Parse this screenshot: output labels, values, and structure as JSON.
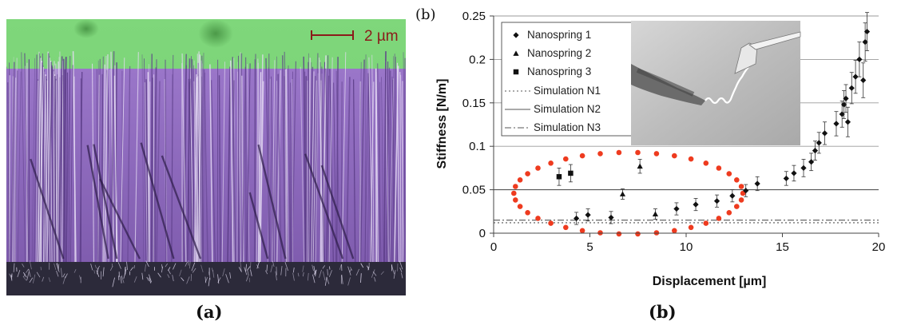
{
  "panel_a": {
    "scale_bar_label": "2 µm",
    "caption": "(a)",
    "colors": {
      "background": "#7fd77b",
      "wires": "#8a64b8",
      "base": "#2c2a3a"
    }
  },
  "panel_b": {
    "panel_label": "(b)",
    "caption": "(b)",
    "chart_data": {
      "type": "scatter",
      "title": "",
      "xlabel": "Displacement [µm]",
      "ylabel": "Stiffness [N/m]",
      "xlim": [
        0,
        20
      ],
      "ylim": [
        0,
        0.25
      ],
      "x_ticks": [
        0,
        5,
        10,
        15,
        20
      ],
      "y_ticks": [
        0,
        0.05,
        0.1,
        0.15,
        0.2,
        0.25
      ],
      "y_tick_labels": [
        "0",
        "0.05",
        "0.1",
        "0.15",
        "0.2",
        "0.25"
      ],
      "grid": "horizontal",
      "legend_position": "top-left",
      "series": [
        {
          "name": "Nanospring 1",
          "marker": "diamond",
          "points": [
            {
              "x": 4.3,
              "y": 0.017,
              "err": 0.007
            },
            {
              "x": 4.9,
              "y": 0.021,
              "err": 0.007
            },
            {
              "x": 6.1,
              "y": 0.018,
              "err": 0.007
            },
            {
              "x": 9.5,
              "y": 0.028,
              "err": 0.007
            },
            {
              "x": 10.5,
              "y": 0.033,
              "err": 0.007
            },
            {
              "x": 11.6,
              "y": 0.037,
              "err": 0.007
            },
            {
              "x": 12.4,
              "y": 0.043,
              "err": 0.007
            },
            {
              "x": 13.1,
              "y": 0.049,
              "err": 0.007
            },
            {
              "x": 13.7,
              "y": 0.057,
              "err": 0.008
            },
            {
              "x": 15.2,
              "y": 0.063,
              "err": 0.008
            },
            {
              "x": 15.6,
              "y": 0.069,
              "err": 0.009
            },
            {
              "x": 16.1,
              "y": 0.075,
              "err": 0.01
            },
            {
              "x": 16.5,
              "y": 0.082,
              "err": 0.01
            },
            {
              "x": 16.7,
              "y": 0.095,
              "err": 0.011
            },
            {
              "x": 16.9,
              "y": 0.104,
              "err": 0.012
            },
            {
              "x": 17.2,
              "y": 0.115,
              "err": 0.013
            },
            {
              "x": 17.8,
              "y": 0.126,
              "err": 0.014
            },
            {
              "x": 18.1,
              "y": 0.137,
              "err": 0.015
            },
            {
              "x": 18.2,
              "y": 0.148,
              "err": 0.016
            },
            {
              "x": 18.3,
              "y": 0.155,
              "err": 0.016
            },
            {
              "x": 18.4,
              "y": 0.128,
              "err": 0.017
            },
            {
              "x": 18.6,
              "y": 0.167,
              "err": 0.018
            },
            {
              "x": 18.8,
              "y": 0.18,
              "err": 0.019
            },
            {
              "x": 19.0,
              "y": 0.2,
              "err": 0.02
            },
            {
              "x": 19.2,
              "y": 0.176,
              "err": 0.02
            },
            {
              "x": 19.3,
              "y": 0.22,
              "err": 0.022
            },
            {
              "x": 19.4,
              "y": 0.232,
              "err": 0.022
            }
          ]
        },
        {
          "name": "Nanospring 2",
          "marker": "triangle",
          "points": [
            {
              "x": 6.7,
              "y": 0.045,
              "err": 0.006
            },
            {
              "x": 7.6,
              "y": 0.077,
              "err": 0.008
            },
            {
              "x": 8.4,
              "y": 0.022,
              "err": 0.006
            }
          ]
        },
        {
          "name": "Nanospring 3",
          "marker": "square",
          "points": [
            {
              "x": 3.4,
              "y": 0.065,
              "err": 0.01
            },
            {
              "x": 4.0,
              "y": 0.069,
              "err": 0.01
            }
          ]
        }
      ],
      "reference_lines": [
        {
          "name": "Simulation N1",
          "style": "dotted",
          "y": 0.012
        },
        {
          "name": "Simulation N2",
          "style": "solid",
          "y": 0.05
        },
        {
          "name": "Simulation N3",
          "style": "dashdot",
          "y": 0.015
        }
      ],
      "annotation": "red dotted ellipse around low-displacement points",
      "inset": "SEM image of nanospring between tips"
    }
  }
}
